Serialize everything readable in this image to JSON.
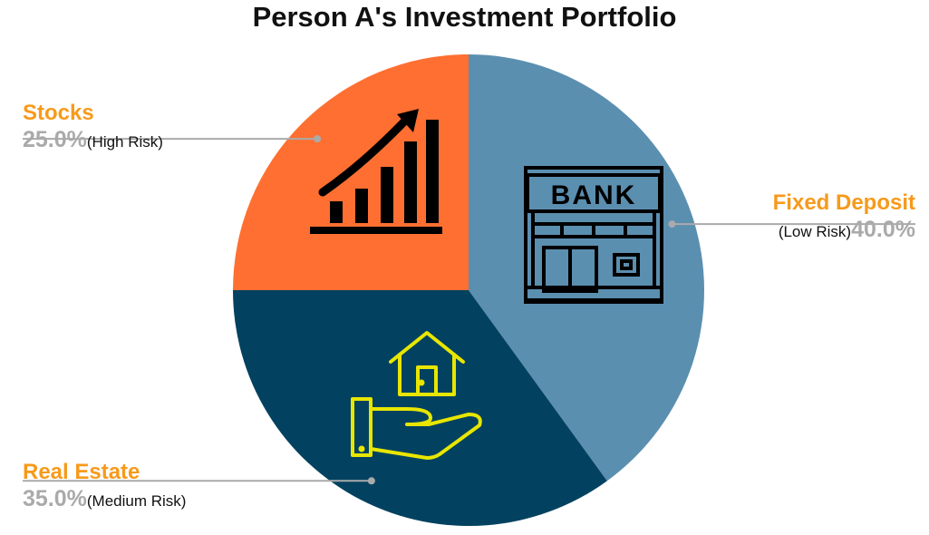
{
  "chart_data": {
    "type": "pie",
    "title": "Person A's Investment Portfolio",
    "slices": [
      {
        "label": "Fixed Deposit",
        "value": 40.0,
        "value_label": "40.0%",
        "risk": "(Low Risk)",
        "color": "#5b8fb0",
        "icon": "bank-building-icon",
        "icon_text": "BANK"
      },
      {
        "label": "Real Estate",
        "value": 35.0,
        "value_label": "35.0%",
        "risk": "(Medium Risk)",
        "color": "#024260",
        "icon": "house-in-hand-icon"
      },
      {
        "label": "Stocks",
        "value": 25.0,
        "value_label": "25.0%",
        "risk": "(High Risk)",
        "color": "#ff6f31",
        "icon": "growth-chart-icon"
      }
    ],
    "label_color": "#f79a1b",
    "leader_color": "#aaaaaa",
    "percent_color": "#aaaaaa"
  }
}
